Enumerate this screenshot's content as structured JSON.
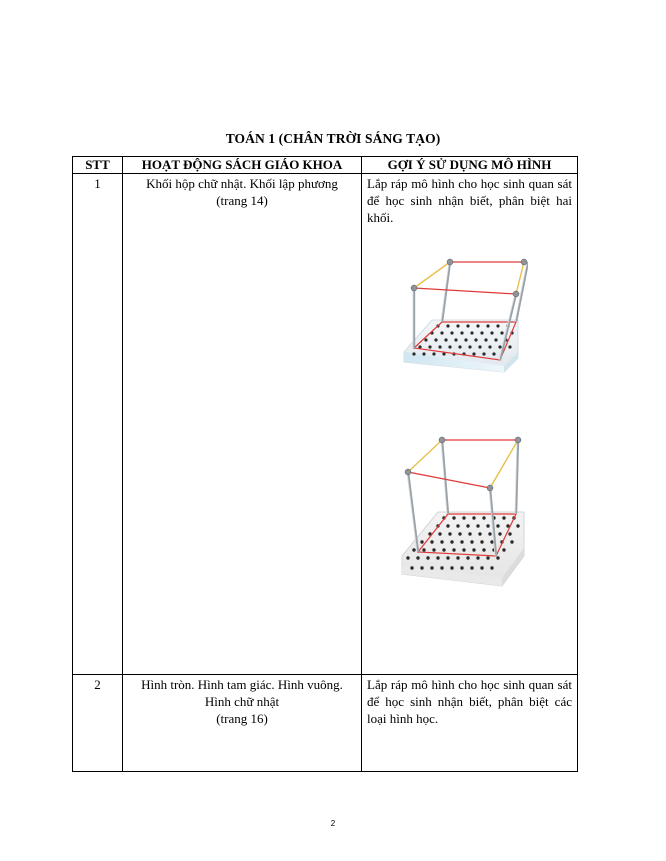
{
  "title": "TOÁN 1  (CHÂN TRỜI SÁNG TẠO)",
  "table": {
    "headers": [
      "STT",
      "HOẠT ĐỘNG SÁCH GIÁO KHOA",
      "GỢI Ý SỬ DỤNG MÔ HÌNH"
    ],
    "rows": [
      {
        "stt": "1",
        "activity_line1": "Khối hộp chữ nhật. Khối lập phương",
        "activity_line2": "(trang 14)",
        "activity_line3": "",
        "hint": "Lắp ráp mô hình cho học sinh quan sát để học sinh nhận biết, phân biệt hai khối."
      },
      {
        "stt": "2",
        "activity_line1": "Hình tròn. Hình tam giác. Hình vuông.",
        "activity_line2": "Hình chữ nhật",
        "activity_line3": "(trang 16)",
        "hint": "Lắp ráp mô hình cho học sinh quan sát để học sinh nhận biết, phân biệt các loại hình học."
      }
    ]
  },
  "page_number": "2"
}
